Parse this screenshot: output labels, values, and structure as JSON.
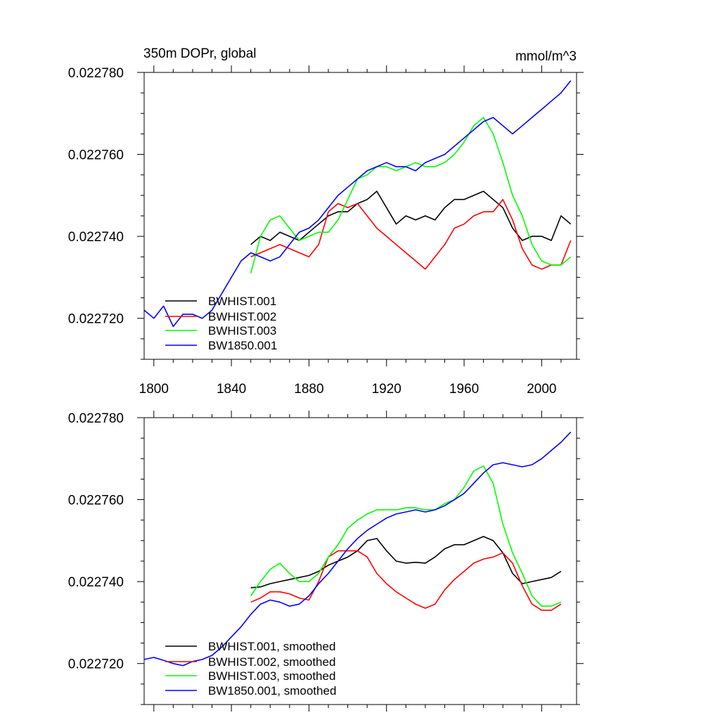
{
  "chart_data": [
    {
      "type": "line",
      "title": "350m DOPr, global",
      "units": "mmol/m^3",
      "xlim": [
        1795,
        2018
      ],
      "ylim": [
        0.02271,
        0.02278
      ],
      "xticks": [
        "1800",
        "1840",
        "1880",
        "1920",
        "1960",
        "2000"
      ],
      "yticks": [
        "0.022720",
        "0.022740",
        "0.022760",
        "0.022780"
      ],
      "legend_position": "bottom-left",
      "series": [
        {
          "name": "BWHIST.001",
          "color": "#000000",
          "x": [
            1850,
            1855,
            1860,
            1865,
            1870,
            1875,
            1880,
            1885,
            1890,
            1895,
            1900,
            1905,
            1910,
            1915,
            1920,
            1925,
            1930,
            1935,
            1940,
            1945,
            1950,
            1955,
            1960,
            1965,
            1970,
            1975,
            1980,
            1985,
            1990,
            1995,
            2000,
            2005,
            2010,
            2015
          ],
          "y": [
            0.022738,
            0.02274,
            0.022739,
            0.022741,
            0.02274,
            0.022739,
            0.022741,
            0.022743,
            0.022745,
            0.022746,
            0.022746,
            0.022748,
            0.022749,
            0.022751,
            0.022747,
            0.022743,
            0.022745,
            0.022744,
            0.022745,
            0.022744,
            0.022747,
            0.022749,
            0.022749,
            0.02275,
            0.022751,
            0.022749,
            0.022747,
            0.022742,
            0.022739,
            0.02274,
            0.02274,
            0.022739,
            0.022745,
            0.022743
          ]
        },
        {
          "name": "BWHIST.002",
          "color": "#ff0000",
          "x": [
            1850,
            1855,
            1860,
            1865,
            1870,
            1875,
            1880,
            1885,
            1890,
            1895,
            1900,
            1905,
            1910,
            1915,
            1920,
            1925,
            1930,
            1935,
            1940,
            1945,
            1950,
            1955,
            1960,
            1965,
            1970,
            1975,
            1980,
            1985,
            1990,
            1995,
            2000,
            2005,
            2010,
            2015
          ],
          "y": [
            0.022735,
            0.022736,
            0.022737,
            0.022738,
            0.022737,
            0.022736,
            0.022735,
            0.022738,
            0.022746,
            0.022748,
            0.022747,
            0.022748,
            0.022745,
            0.022742,
            0.02274,
            0.022738,
            0.022736,
            0.022734,
            0.022732,
            0.022735,
            0.022738,
            0.022742,
            0.022743,
            0.022745,
            0.022746,
            0.022746,
            0.022749,
            0.022744,
            0.022737,
            0.022733,
            0.022732,
            0.022733,
            0.022733,
            0.022739
          ]
        },
        {
          "name": "BWHIST.003",
          "color": "#00ff00",
          "x": [
            1850,
            1855,
            1860,
            1865,
            1870,
            1875,
            1880,
            1885,
            1890,
            1895,
            1900,
            1905,
            1910,
            1915,
            1920,
            1925,
            1930,
            1935,
            1940,
            1945,
            1950,
            1955,
            1960,
            1965,
            1970,
            1975,
            1980,
            1985,
            1990,
            1995,
            2000,
            2005,
            2010,
            2015
          ],
          "y": [
            0.022731,
            0.02274,
            0.022744,
            0.022745,
            0.022742,
            0.022739,
            0.02274,
            0.022741,
            0.022741,
            0.022744,
            0.022749,
            0.022754,
            0.022755,
            0.022757,
            0.022757,
            0.022756,
            0.022757,
            0.022758,
            0.022757,
            0.022757,
            0.022758,
            0.02276,
            0.022763,
            0.022767,
            0.022769,
            0.022765,
            0.022758,
            0.02275,
            0.022745,
            0.022738,
            0.022734,
            0.022733,
            0.022733,
            0.022735
          ]
        },
        {
          "name": "BW1850.001",
          "color": "#0000ff",
          "x": [
            1795,
            1800,
            1805,
            1810,
            1815,
            1820,
            1825,
            1830,
            1835,
            1840,
            1845,
            1850,
            1855,
            1860,
            1865,
            1870,
            1875,
            1880,
            1885,
            1890,
            1895,
            1900,
            1905,
            1910,
            1915,
            1920,
            1925,
            1930,
            1935,
            1940,
            1945,
            1950,
            1955,
            1960,
            1965,
            1970,
            1975,
            1980,
            1985,
            1990,
            1995,
            2000,
            2005,
            2010,
            2015
          ],
          "y": [
            0.022722,
            0.02272,
            0.022723,
            0.022718,
            0.022721,
            0.022721,
            0.02272,
            0.022722,
            0.022726,
            0.02273,
            0.022734,
            0.022736,
            0.022735,
            0.022734,
            0.022735,
            0.022738,
            0.022741,
            0.022742,
            0.022744,
            0.022747,
            0.02275,
            0.022752,
            0.022754,
            0.022756,
            0.022757,
            0.022758,
            0.022757,
            0.022757,
            0.022756,
            0.022758,
            0.022759,
            0.02276,
            0.022762,
            0.022764,
            0.022766,
            0.022768,
            0.022769,
            0.022767,
            0.022765,
            0.022767,
            0.022769,
            0.022771,
            0.022773,
            0.022775,
            0.022778
          ]
        }
      ]
    },
    {
      "type": "line",
      "title": "",
      "units": "",
      "xlim": [
        1795,
        2018
      ],
      "ylim": [
        0.02271,
        0.02278
      ],
      "xticks": [],
      "yticks": [
        "0.022720",
        "0.022740",
        "0.022760",
        "0.022780"
      ],
      "legend_position": "bottom-left",
      "series": [
        {
          "name": "BWHIST.001, smoothed",
          "color": "#000000",
          "x": [
            1850,
            1855,
            1860,
            1865,
            1870,
            1875,
            1880,
            1885,
            1890,
            1895,
            1900,
            1905,
            1910,
            1915,
            1920,
            1925,
            1930,
            1935,
            1940,
            1945,
            1950,
            1955,
            1960,
            1965,
            1970,
            1975,
            1980,
            1985,
            1990,
            1995,
            2000,
            2005,
            2010
          ],
          "y": [
            0.0227385,
            0.0227387,
            0.0227395,
            0.02274,
            0.0227405,
            0.022741,
            0.0227415,
            0.0227425,
            0.022744,
            0.022745,
            0.022746,
            0.0227475,
            0.02275,
            0.0227505,
            0.0227475,
            0.022745,
            0.0227445,
            0.0227447,
            0.0227445,
            0.022746,
            0.022748,
            0.022749,
            0.022749,
            0.02275,
            0.022751,
            0.02275,
            0.022747,
            0.022742,
            0.0227395,
            0.02274,
            0.0227405,
            0.022741,
            0.0227425
          ]
        },
        {
          "name": "BWHIST.002, smoothed",
          "color": "#ff0000",
          "x": [
            1850,
            1855,
            1860,
            1865,
            1870,
            1875,
            1880,
            1885,
            1890,
            1895,
            1900,
            1905,
            1910,
            1915,
            1920,
            1925,
            1930,
            1935,
            1940,
            1945,
            1950,
            1955,
            1960,
            1965,
            1970,
            1975,
            1980,
            1985,
            1990,
            1995,
            2000,
            2005,
            2010
          ],
          "y": [
            0.022735,
            0.022736,
            0.0227375,
            0.0227375,
            0.022737,
            0.022736,
            0.0227355,
            0.02274,
            0.022746,
            0.0227475,
            0.0227475,
            0.0227475,
            0.022746,
            0.022742,
            0.0227395,
            0.0227375,
            0.022736,
            0.0227345,
            0.0227335,
            0.0227345,
            0.022738,
            0.0227405,
            0.0227425,
            0.0227445,
            0.0227455,
            0.022746,
            0.022747,
            0.0227445,
            0.022739,
            0.0227345,
            0.022733,
            0.022733,
            0.0227345
          ]
        },
        {
          "name": "BWHIST.003, smoothed",
          "color": "#00ff00",
          "x": [
            1850,
            1855,
            1860,
            1865,
            1870,
            1875,
            1880,
            1885,
            1890,
            1895,
            1900,
            1905,
            1910,
            1915,
            1920,
            1925,
            1930,
            1935,
            1940,
            1945,
            1950,
            1955,
            1960,
            1965,
            1970,
            1975,
            1980,
            1985,
            1990,
            1995,
            2000,
            2005,
            2010
          ],
          "y": [
            0.0227365,
            0.02274,
            0.022743,
            0.0227445,
            0.022742,
            0.02274,
            0.02274,
            0.022742,
            0.022746,
            0.022749,
            0.022753,
            0.022755,
            0.0227565,
            0.0227575,
            0.0227575,
            0.0227575,
            0.022758,
            0.022758,
            0.0227575,
            0.0227575,
            0.022759,
            0.02276,
            0.022763,
            0.022767,
            0.0227682,
            0.022764,
            0.022754,
            0.022747,
            0.022742,
            0.0227365,
            0.022734,
            0.022734,
            0.022735
          ]
        },
        {
          "name": "BW1850.001, smoothed",
          "color": "#0000ff",
          "x": [
            1795,
            1800,
            1805,
            1810,
            1815,
            1820,
            1825,
            1830,
            1835,
            1840,
            1845,
            1850,
            1855,
            1860,
            1865,
            1870,
            1875,
            1880,
            1885,
            1890,
            1895,
            1900,
            1905,
            1910,
            1915,
            1920,
            1925,
            1930,
            1935,
            1940,
            1945,
            1950,
            1955,
            1960,
            1965,
            1970,
            1975,
            1980,
            1985,
            1990,
            1995,
            2000,
            2005,
            2010,
            2015
          ],
          "y": [
            0.022721,
            0.0227215,
            0.0227208,
            0.02272,
            0.0227195,
            0.0227205,
            0.022721,
            0.022722,
            0.022724,
            0.0227265,
            0.022729,
            0.022732,
            0.0227345,
            0.0227355,
            0.022735,
            0.022734,
            0.0227345,
            0.0227365,
            0.0227395,
            0.022742,
            0.022745,
            0.022748,
            0.0227505,
            0.0227525,
            0.022754,
            0.0227555,
            0.0227565,
            0.022757,
            0.0227575,
            0.022757,
            0.0227575,
            0.0227585,
            0.02276,
            0.0227615,
            0.022764,
            0.0227665,
            0.0227685,
            0.022769,
            0.0227685,
            0.022768,
            0.0227685,
            0.02277,
            0.022772,
            0.022774,
            0.0227765
          ]
        }
      ]
    }
  ]
}
